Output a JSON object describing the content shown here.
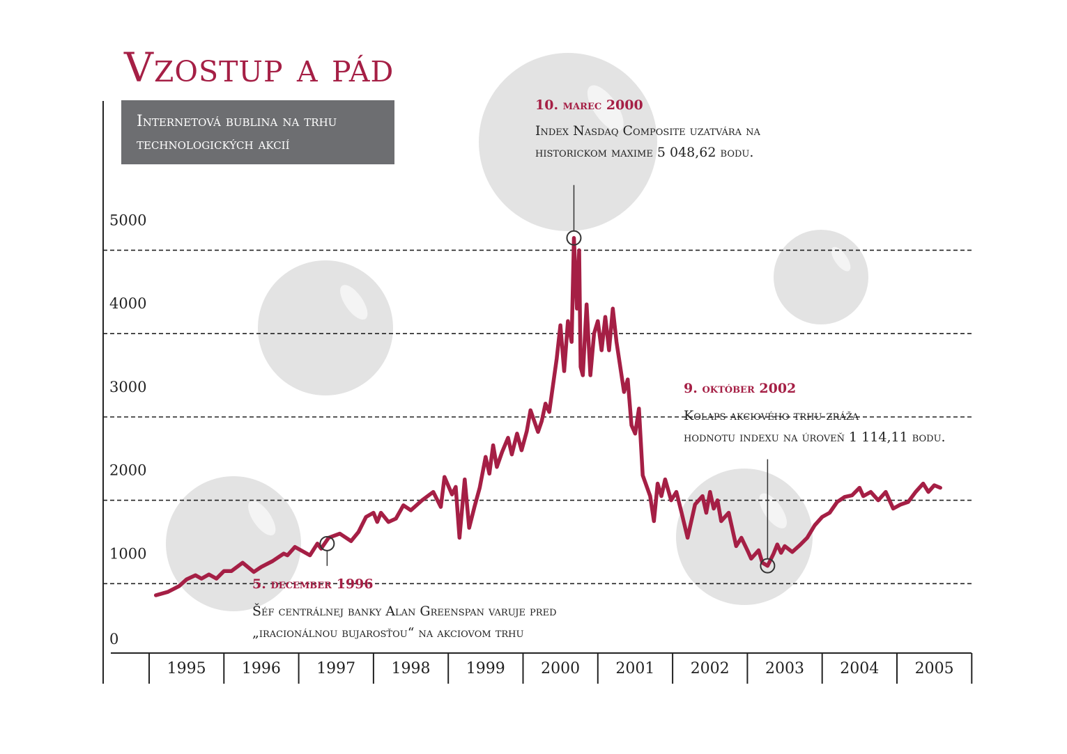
{
  "title": "Vzostup a pád",
  "subtitle": [
    "Internetová bublina na trhu",
    "technologických akcií"
  ],
  "colors": {
    "accent": "#a51f45",
    "subtitle_box": "#6d6e71",
    "bubble": "#e3e3e3",
    "axis": "#222222",
    "gridline": "#222222"
  },
  "annotations": [
    {
      "date": "10. marec 2000",
      "lines": [
        "Index Nasdaq Composite uzatvára na",
        "historickom maxime 5 048,62 bodu."
      ]
    },
    {
      "date": "9. október 2002",
      "lines": [
        "Kolaps akciového trhu zráža",
        "hodnotu indexu na úroveň 1 114,11 bodu."
      ]
    },
    {
      "date": "5. december 1996",
      "lines": [
        "Šéf centrálnej banky Alan Greenspan varuje pred",
        "„iracionálnou bujarosťou“ na akciovom trhu"
      ]
    }
  ],
  "chart_data": {
    "type": "line",
    "title": "Vzostup a pád",
    "subtitle": "Internetová bublina na trhu technologických akcií",
    "xlabel": "",
    "ylabel": "",
    "x_categories": [
      "1995",
      "1996",
      "1997",
      "1998",
      "1999",
      "2000",
      "2001",
      "2002",
      "2003",
      "2004",
      "2005"
    ],
    "y_ticks": [
      0,
      1000,
      2000,
      3000,
      4000,
      5000
    ],
    "ylim": [
      0,
      5000
    ],
    "grid": "horizontal dashed",
    "series": [
      {
        "name": "",
        "color": "#a51f45",
        "points": [
          [
            1994.59,
            760
          ],
          [
            1994.75,
            800
          ],
          [
            1994.9,
            870
          ],
          [
            1995.0,
            950
          ],
          [
            1995.12,
            1000
          ],
          [
            1995.2,
            960
          ],
          [
            1995.3,
            1010
          ],
          [
            1995.4,
            960
          ],
          [
            1995.5,
            1050
          ],
          [
            1995.6,
            1050
          ],
          [
            1995.75,
            1150
          ],
          [
            1995.9,
            1040
          ],
          [
            1996.0,
            1100
          ],
          [
            1996.15,
            1170
          ],
          [
            1996.3,
            1260
          ],
          [
            1996.35,
            1240
          ],
          [
            1996.45,
            1340
          ],
          [
            1996.55,
            1290
          ],
          [
            1996.65,
            1240
          ],
          [
            1996.75,
            1380
          ],
          [
            1996.8,
            1320
          ],
          [
            1996.9,
            1450
          ],
          [
            1997.05,
            1500
          ],
          [
            1997.2,
            1410
          ],
          [
            1997.3,
            1520
          ],
          [
            1997.4,
            1700
          ],
          [
            1997.5,
            1750
          ],
          [
            1997.55,
            1640
          ],
          [
            1997.6,
            1750
          ],
          [
            1997.7,
            1640
          ],
          [
            1997.8,
            1680
          ],
          [
            1997.9,
            1840
          ],
          [
            1998.0,
            1780
          ],
          [
            1998.15,
            1900
          ],
          [
            1998.3,
            2000
          ],
          [
            1998.4,
            1820
          ],
          [
            1998.45,
            2180
          ],
          [
            1998.55,
            1970
          ],
          [
            1998.6,
            2060
          ],
          [
            1998.65,
            1450
          ],
          [
            1998.72,
            2150
          ],
          [
            1998.78,
            1570
          ],
          [
            1998.85,
            1820
          ],
          [
            1998.92,
            2050
          ],
          [
            1999.0,
            2420
          ],
          [
            1999.05,
            2220
          ],
          [
            1999.1,
            2560
          ],
          [
            1999.15,
            2300
          ],
          [
            1999.22,
            2480
          ],
          [
            1999.3,
            2650
          ],
          [
            1999.35,
            2450
          ],
          [
            1999.42,
            2700
          ],
          [
            1999.48,
            2500
          ],
          [
            1999.55,
            2730
          ],
          [
            1999.6,
            2980
          ],
          [
            1999.7,
            2720
          ],
          [
            1999.75,
            2850
          ],
          [
            1999.8,
            3060
          ],
          [
            1999.85,
            2960
          ],
          [
            1999.95,
            3600
          ],
          [
            2000.0,
            4000
          ],
          [
            2000.05,
            3450
          ],
          [
            2000.1,
            4050
          ],
          [
            2000.15,
            3800
          ],
          [
            2000.18,
            5048
          ],
          [
            2000.22,
            4200
          ],
          [
            2000.25,
            4900
          ],
          [
            2000.27,
            3500
          ],
          [
            2000.3,
            3400
          ],
          [
            2000.35,
            4250
          ],
          [
            2000.4,
            3400
          ],
          [
            2000.45,
            3900
          ],
          [
            2000.5,
            4050
          ],
          [
            2000.55,
            3700
          ],
          [
            2000.6,
            4100
          ],
          [
            2000.65,
            3700
          ],
          [
            2000.7,
            4200
          ],
          [
            2000.75,
            3800
          ],
          [
            2000.8,
            3500
          ],
          [
            2000.85,
            3200
          ],
          [
            2000.9,
            3350
          ],
          [
            2000.95,
            2800
          ],
          [
            2001.0,
            2700
          ],
          [
            2001.05,
            3000
          ],
          [
            2001.1,
            2200
          ],
          [
            2001.2,
            1950
          ],
          [
            2001.25,
            1650
          ],
          [
            2001.3,
            2100
          ],
          [
            2001.35,
            1950
          ],
          [
            2001.4,
            2150
          ],
          [
            2001.48,
            1900
          ],
          [
            2001.55,
            2000
          ],
          [
            2001.62,
            1750
          ],
          [
            2001.7,
            1450
          ],
          [
            2001.8,
            1850
          ],
          [
            2001.9,
            1950
          ],
          [
            2001.95,
            1750
          ],
          [
            2002.0,
            2000
          ],
          [
            2002.05,
            1800
          ],
          [
            2002.1,
            1900
          ],
          [
            2002.15,
            1650
          ],
          [
            2002.25,
            1750
          ],
          [
            2002.35,
            1350
          ],
          [
            2002.42,
            1450
          ],
          [
            2002.5,
            1300
          ],
          [
            2002.55,
            1200
          ],
          [
            2002.65,
            1300
          ],
          [
            2002.7,
            1150
          ],
          [
            2002.77,
            1114
          ],
          [
            2002.85,
            1260
          ],
          [
            2002.9,
            1370
          ],
          [
            2002.95,
            1270
          ],
          [
            2003.0,
            1350
          ],
          [
            2003.1,
            1280
          ],
          [
            2003.2,
            1360
          ],
          [
            2003.3,
            1450
          ],
          [
            2003.4,
            1600
          ],
          [
            2003.5,
            1700
          ],
          [
            2003.6,
            1750
          ],
          [
            2003.7,
            1880
          ],
          [
            2003.8,
            1940
          ],
          [
            2003.9,
            1960
          ],
          [
            2004.0,
            2050
          ],
          [
            2004.05,
            1950
          ],
          [
            2004.15,
            2000
          ],
          [
            2004.25,
            1900
          ],
          [
            2004.35,
            2000
          ],
          [
            2004.45,
            1800
          ],
          [
            2004.55,
            1850
          ],
          [
            2004.65,
            1880
          ],
          [
            2004.75,
            2000
          ],
          [
            2004.85,
            2100
          ],
          [
            2004.92,
            2000
          ],
          [
            2005.0,
            2080
          ],
          [
            2005.08,
            2050
          ]
        ]
      }
    ]
  }
}
